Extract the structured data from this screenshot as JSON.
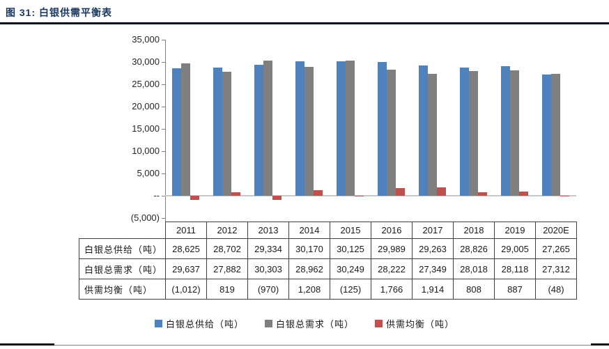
{
  "figure": {
    "title": "图 31: 白银供需平衡表"
  },
  "chart_data": {
    "type": "bar",
    "title": "白银供需平衡表",
    "categories": [
      "2011",
      "2012",
      "2013",
      "2014",
      "2015",
      "2016",
      "2017",
      "2018",
      "2019",
      "2020E"
    ],
    "series": [
      {
        "name": "白银总供给（吨）",
        "color": "#4F81BD",
        "values": [
          28625,
          28702,
          29334,
          30170,
          30125,
          29989,
          29263,
          28826,
          29005,
          27265
        ]
      },
      {
        "name": "白银总需求（吨）",
        "color": "#7F7F7F",
        "values": [
          29637,
          27882,
          30303,
          28962,
          30249,
          28222,
          27349,
          28018,
          28118,
          27312
        ]
      },
      {
        "name": "供需均衡（吨）",
        "color": "#C0504D",
        "values": [
          -1012,
          819,
          -970,
          1208,
          -125,
          1766,
          1914,
          808,
          887,
          -48
        ]
      }
    ],
    "xlabel": "",
    "ylabel": "",
    "ylim": [
      -5000,
      35000
    ],
    "ytick_step": 5000,
    "yticks": [
      {
        "label": "35,000",
        "value": 35000
      },
      {
        "label": "30,000",
        "value": 30000
      },
      {
        "label": "25,000",
        "value": 25000
      },
      {
        "label": "20,000",
        "value": 20000
      },
      {
        "label": "15,000",
        "value": 15000
      },
      {
        "label": "10,000",
        "value": 10000
      },
      {
        "label": "5,000",
        "value": 5000
      },
      {
        "label": "--",
        "value": 0
      },
      {
        "label": "(5,000)",
        "value": -5000
      }
    ],
    "grid": false,
    "legend_position": "bottom"
  },
  "table": {
    "year_header": [
      "2011",
      "2012",
      "2013",
      "2014",
      "2015",
      "2016",
      "2017",
      "2018",
      "2019",
      "2020E"
    ],
    "rows": [
      {
        "label": "白银总供给（吨）",
        "values": [
          "28,625",
          "28,702",
          "29,334",
          "30,170",
          "30,125",
          "29,989",
          "29,263",
          "28,826",
          "29,005",
          "27,265"
        ]
      },
      {
        "label": "白银总需求（吨）",
        "values": [
          "29,637",
          "27,882",
          "30,303",
          "28,962",
          "30,249",
          "28,222",
          "27,349",
          "28,018",
          "28,118",
          "27,312"
        ]
      },
      {
        "label": "供需均衡（吨）",
        "values": [
          "(1,012)",
          "819",
          "(970)",
          "1,208",
          "(125)",
          "1,766",
          "1,914",
          "808",
          "887",
          "(48)"
        ]
      }
    ]
  },
  "legend": {
    "items": [
      {
        "label": "白银总供给（吨）",
        "color": "#4F81BD"
      },
      {
        "label": "白银总需求（吨）",
        "color": "#7F7F7F"
      },
      {
        "label": "供需均衡（吨）",
        "color": "#C0504D"
      }
    ]
  }
}
